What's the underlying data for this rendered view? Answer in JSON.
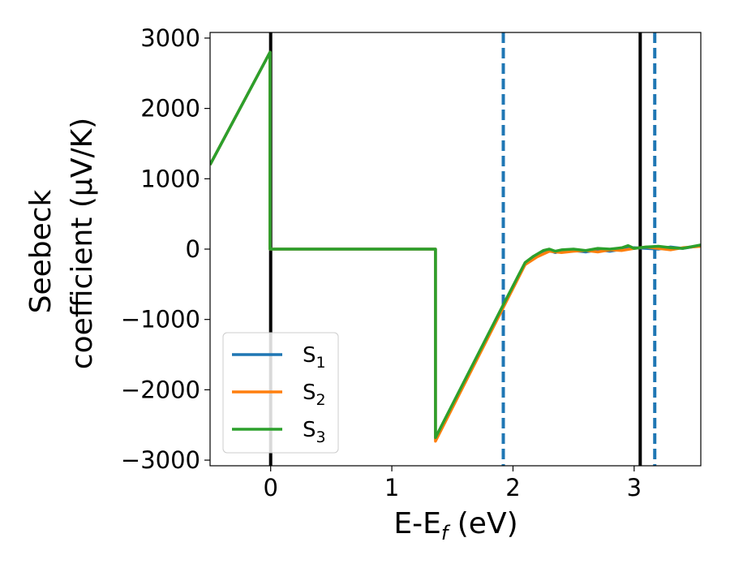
{
  "chart_data": {
    "type": "line",
    "xlabel_main": "E-E",
    "xlabel_sub": "f",
    "xlabel_unit": " (eV)",
    "ylabel_line1": "Seebeck",
    "ylabel_line2": "coefficient  (μV/K)",
    "xlim": [
      -0.5,
      3.55
    ],
    "ylim": [
      -3080,
      3080
    ],
    "xticks": [
      0,
      1,
      2,
      3
    ],
    "xtick_labels": [
      "0",
      "1",
      "2",
      "3"
    ],
    "yticks": [
      3000,
      2000,
      1000,
      0,
      -1000,
      -2000,
      -3000
    ],
    "ytick_labels": [
      "3000",
      "2000",
      "1000",
      "0",
      "−1000",
      "−2000",
      "−3000"
    ],
    "grid": false,
    "legend_placement": "lower-left",
    "vertical_lines": [
      {
        "x": 0.0,
        "style": "solid",
        "color": "#000000"
      },
      {
        "x": 3.05,
        "style": "solid",
        "color": "#000000"
      },
      {
        "x": 1.92,
        "style": "dashed",
        "color": "#1f77b4"
      },
      {
        "x": 3.17,
        "style": "dashed",
        "color": "#1f77b4"
      }
    ],
    "series": [
      {
        "name": "S",
        "sub": "1",
        "color": "#1f77b4",
        "points": [
          [
            -0.5,
            1200
          ],
          [
            -0.005,
            2800
          ],
          [
            -0.005,
            0
          ],
          [
            1.36,
            0
          ],
          [
            1.36,
            -2700
          ],
          [
            1.92,
            -800
          ],
          [
            2.1,
            -200
          ],
          [
            2.2,
            -90
          ],
          [
            2.3,
            -20
          ],
          [
            2.35,
            -50
          ],
          [
            2.4,
            -30
          ],
          [
            2.5,
            -20
          ],
          [
            2.6,
            -40
          ],
          [
            2.7,
            -10
          ],
          [
            2.8,
            -30
          ],
          [
            2.9,
            0
          ],
          [
            3.0,
            20
          ],
          [
            3.1,
            10
          ],
          [
            3.2,
            0
          ],
          [
            3.3,
            30
          ],
          [
            3.4,
            10
          ],
          [
            3.55,
            50
          ]
        ]
      },
      {
        "name": "S",
        "sub": "2",
        "color": "#ff7f0e",
        "points": [
          [
            -0.5,
            1200
          ],
          [
            -0.005,
            2800
          ],
          [
            -0.005,
            0
          ],
          [
            1.36,
            0
          ],
          [
            1.36,
            -2730
          ],
          [
            1.92,
            -830
          ],
          [
            2.1,
            -220
          ],
          [
            2.2,
            -110
          ],
          [
            2.3,
            -30
          ],
          [
            2.4,
            -50
          ],
          [
            2.5,
            -30
          ],
          [
            2.6,
            -20
          ],
          [
            2.7,
            -40
          ],
          [
            2.8,
            -10
          ],
          [
            2.9,
            -20
          ],
          [
            3.0,
            10
          ],
          [
            3.1,
            30
          ],
          [
            3.2,
            10
          ],
          [
            3.3,
            -10
          ],
          [
            3.4,
            20
          ],
          [
            3.55,
            40
          ]
        ]
      },
      {
        "name": "S",
        "sub": "3",
        "color": "#2ca02c",
        "points": [
          [
            -0.5,
            1200
          ],
          [
            -0.005,
            2800
          ],
          [
            -0.005,
            0
          ],
          [
            1.36,
            0
          ],
          [
            1.36,
            -2680
          ],
          [
            1.92,
            -790
          ],
          [
            2.1,
            -190
          ],
          [
            2.17,
            -100
          ],
          [
            2.25,
            -20
          ],
          [
            2.3,
            0
          ],
          [
            2.35,
            -30
          ],
          [
            2.4,
            -10
          ],
          [
            2.5,
            0
          ],
          [
            2.6,
            -20
          ],
          [
            2.7,
            10
          ],
          [
            2.8,
            0
          ],
          [
            2.9,
            20
          ],
          [
            2.95,
            50
          ],
          [
            3.0,
            10
          ],
          [
            3.1,
            30
          ],
          [
            3.2,
            40
          ],
          [
            3.3,
            20
          ],
          [
            3.4,
            10
          ],
          [
            3.55,
            60
          ]
        ]
      }
    ]
  }
}
